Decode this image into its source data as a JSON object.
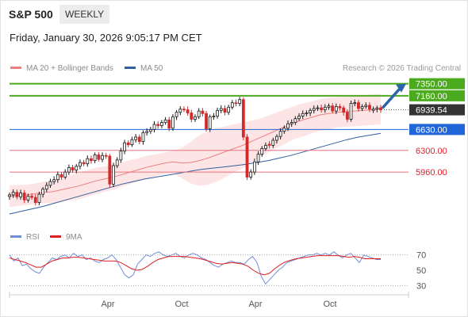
{
  "header": {
    "symbol": "S&P 500",
    "timeframe": "WEEKLY",
    "datetime": "Friday, January 30, 2026 9:05:17 PM CET"
  },
  "legend": {
    "ma20_label": "MA 20 + Bollinger Bands",
    "ma50_label": "MA 50",
    "credit": "Research © 2026 Trading Central",
    "rsi_label": "RSI",
    "rsi_ma_label": "9MA"
  },
  "colors": {
    "candle_up": "#1a1a1a",
    "candle_down": "#d12a2a",
    "ma20": "#f08080",
    "bollinger_fill": "#fde0e0",
    "ma50": "#2f5f9e",
    "resistance": "#4caa1e",
    "support": "#e8737d",
    "pivot": "#2166d9",
    "arrow": "#2b64a8",
    "rsi": "#6f8fd8",
    "rsi_ma": "#e01e1e",
    "last_price_bg": "#333333"
  },
  "chart_data": [
    {
      "type": "candlestick",
      "timeframe": "weekly",
      "x_ticks": [
        "Apr",
        "Oct",
        "Apr",
        "Oct"
      ],
      "ylim": [
        5200,
        7520
      ],
      "close_approx": [
        5600,
        5640,
        5570,
        5630,
        5520,
        5580,
        5560,
        5480,
        5610,
        5690,
        5750,
        5810,
        5840,
        5920,
        5880,
        5960,
        6030,
        5990,
        6050,
        6110,
        6090,
        6170,
        6140,
        6230,
        6160,
        6220,
        6210,
        5770,
        6060,
        6150,
        6290,
        6420,
        6390,
        6470,
        6510,
        6440,
        6580,
        6600,
        6630,
        6710,
        6690,
        6740,
        6780,
        6650,
        6830,
        6900,
        6950,
        6940,
        6890,
        6790,
        6830,
        6920,
        6880,
        6640,
        6830,
        6840,
        6930,
        6960,
        6900,
        6980,
        7050,
        7040,
        7100,
        6510,
        5880,
        5960,
        6120,
        6240,
        6330,
        6380,
        6380,
        6460,
        6520,
        6600,
        6650,
        6720,
        6740,
        6800,
        6840,
        6880,
        6890,
        6930,
        6960,
        6970,
        6940,
        6980,
        7000,
        6920,
        6990,
        6970,
        6900,
        6790,
        7040,
        7050,
        6960,
        6990,
        7010,
        6950,
        6950,
        6970,
        6940
      ],
      "series": [
        {
          "name": "MA 20 + Bollinger Bands",
          "values": [
            5580,
            5590,
            5600,
            5620,
            5640,
            5650,
            5680,
            5710,
            5740,
            5780,
            5820,
            5850,
            5880,
            5920,
            5960,
            6000,
            6040,
            6070,
            6100,
            6120,
            6100,
            6110,
            6140,
            6180,
            6230,
            6280,
            6330,
            6380,
            6440,
            6500,
            6560,
            6620,
            6680,
            6740,
            6780,
            6820,
            6860,
            6880,
            6900,
            6910,
            6920,
            6930,
            6940,
            6950
          ]
        },
        {
          "name": "MA 50",
          "values": [
            5300,
            5340,
            5380,
            5420,
            5470,
            5520,
            5570,
            5620,
            5670,
            5720,
            5770,
            5810,
            5850,
            5880,
            5910,
            5940,
            5970,
            6000,
            6020,
            6040,
            6060,
            6080,
            6110,
            6140,
            6180,
            6220,
            6270,
            6320,
            6370,
            6420,
            6470,
            6510,
            6540,
            6570
          ]
        }
      ],
      "levels": [
        {
          "label": "7350.00",
          "value": 7350,
          "kind": "resistance"
        },
        {
          "label": "7160.00",
          "value": 7160,
          "kind": "resistance"
        },
        {
          "label": "6939.54",
          "value": 6939.54,
          "kind": "last"
        },
        {
          "label": "6630.00",
          "value": 6630,
          "kind": "pivot"
        },
        {
          "label": "6300.00",
          "value": 6300,
          "kind": "support"
        },
        {
          "label": "5960.00",
          "value": 5960,
          "kind": "support"
        }
      ],
      "arrow": {
        "from": 6940,
        "to": 7350
      }
    },
    {
      "type": "line",
      "name": "RSI panel",
      "yticks": [
        70,
        50,
        30
      ],
      "ylim": [
        20,
        80
      ],
      "series": [
        {
          "name": "RSI",
          "values": [
            70,
            62,
            66,
            56,
            58,
            52,
            48,
            46,
            54,
            60,
            66,
            64,
            68,
            70,
            66,
            72,
            68,
            70,
            64,
            66,
            62,
            60,
            64,
            66,
            70,
            64,
            54,
            44,
            40,
            44,
            58,
            64,
            70,
            68,
            72,
            74,
            70,
            68,
            70,
            72,
            68,
            66,
            70,
            72,
            70,
            66,
            64,
            60,
            56,
            54,
            58,
            60,
            62,
            60,
            60,
            58,
            64,
            68,
            60,
            42,
            32,
            38,
            44,
            50,
            54,
            60,
            62,
            64,
            66,
            68,
            70,
            70,
            72,
            70,
            72,
            70,
            74,
            70,
            66,
            70,
            72,
            66,
            60,
            70,
            68,
            66,
            64,
            64
          ]
        },
        {
          "name": "9MA",
          "values": [
            66,
            64,
            62,
            60,
            57,
            54,
            54,
            58,
            62,
            64,
            66,
            66,
            67,
            67,
            66,
            65,
            64,
            63,
            62,
            62,
            62,
            60,
            56,
            52,
            50,
            51,
            55,
            60,
            64,
            66,
            68,
            68,
            68,
            68,
            67,
            66,
            65,
            63,
            61,
            59,
            58,
            59,
            60,
            59,
            58,
            55,
            50,
            46,
            44,
            46,
            52,
            57,
            61,
            63,
            65,
            66,
            67,
            68,
            69,
            69,
            69,
            69,
            69,
            68,
            67,
            68,
            67,
            65,
            65,
            65,
            65
          ]
        }
      ]
    }
  ]
}
